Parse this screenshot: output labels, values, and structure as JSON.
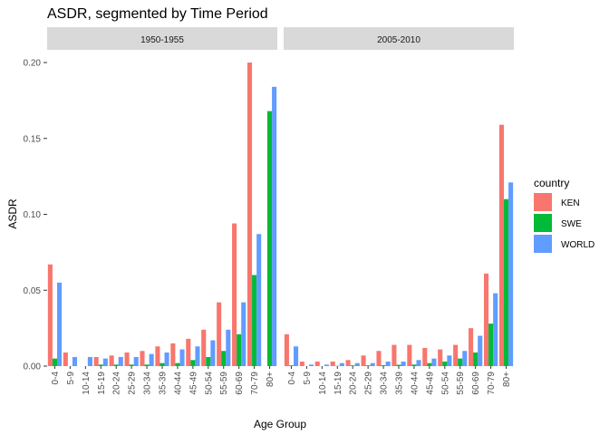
{
  "chart_data": {
    "type": "bar",
    "title": "ASDR, segmented by Time Period",
    "xlabel": "Age Group",
    "ylabel": "ASDR",
    "ylim": [
      0,
      0.2
    ],
    "yticks": [
      0.0,
      0.05,
      0.1,
      0.15,
      0.2
    ],
    "ytick_labels": [
      "0.00",
      "0.05",
      "0.10",
      "0.15",
      "0.20"
    ],
    "grid": false,
    "legend_placement": "right",
    "legend_title": "country",
    "categories": [
      "0-4",
      "5-9",
      "10-14",
      "15-19",
      "20-24",
      "25-29",
      "30-34",
      "35-39",
      "40-44",
      "45-49",
      "50-54",
      "55-59",
      "60-69",
      "70-79",
      "80+"
    ],
    "series_names": [
      "KEN",
      "SWE",
      "WORLD"
    ],
    "colors": {
      "KEN": "#F8766D",
      "SWE": "#00BA38",
      "WORLD": "#619CFF"
    },
    "panels": [
      {
        "label": "1950-1955",
        "series": [
          {
            "name": "KEN",
            "values": [
              0.067,
              0.009,
              null,
              0.006,
              0.007,
              0.009,
              0.01,
              0.013,
              0.015,
              0.018,
              0.024,
              0.042,
              0.094,
              0.2,
              null
            ]
          },
          {
            "name": "SWE",
            "values": [
              0.005,
              null,
              null,
              0.001,
              0.001,
              0.001,
              0.001,
              0.002,
              0.002,
              0.004,
              0.006,
              0.01,
              0.021,
              0.06,
              0.168
            ]
          },
          {
            "name": "WORLD",
            "values": [
              0.055,
              0.006,
              0.006,
              0.005,
              0.006,
              0.006,
              0.008,
              0.009,
              0.011,
              0.013,
              0.017,
              0.024,
              0.042,
              0.087,
              0.184
            ]
          }
        ]
      },
      {
        "label": "2005-2010",
        "series": [
          {
            "name": "KEN",
            "values": [
              0.021,
              0.003,
              0.003,
              0.003,
              0.004,
              0.007,
              0.01,
              0.014,
              0.014,
              0.012,
              0.011,
              0.014,
              0.025,
              0.061,
              0.159
            ]
          },
          {
            "name": "SWE",
            "values": [
              0.0005,
              null,
              null,
              0.0002,
              0.0005,
              0.0005,
              0.0006,
              0.0009,
              0.001,
              0.002,
              0.003,
              0.005,
              0.009,
              0.028,
              0.11
            ]
          },
          {
            "name": "WORLD",
            "values": [
              0.013,
              0.001,
              0.001,
              0.002,
              0.002,
              0.002,
              0.003,
              0.003,
              0.004,
              0.005,
              0.007,
              0.01,
              0.02,
              0.048,
              0.121
            ]
          }
        ]
      }
    ]
  }
}
